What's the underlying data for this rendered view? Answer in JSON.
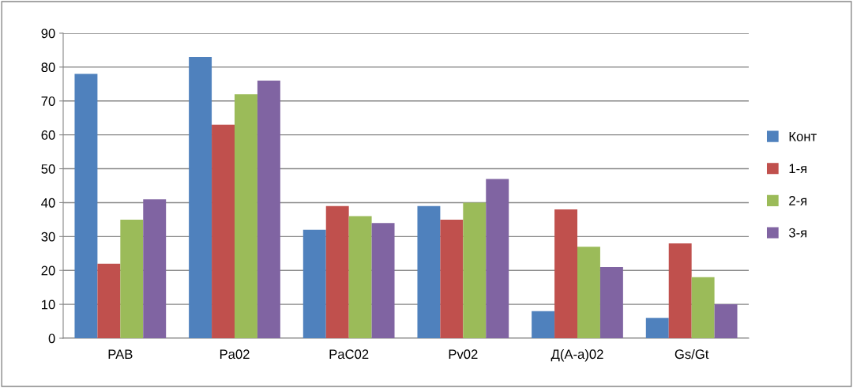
{
  "chart_data": {
    "type": "bar",
    "categories": [
      "PAB",
      "Pa02",
      "PaC02",
      "Pv02",
      "Д(A-a)02",
      "Gs/Gt"
    ],
    "series": [
      {
        "name": "Конт",
        "color": "#4f81bd",
        "values": [
          78,
          83,
          32,
          39,
          8,
          6
        ]
      },
      {
        "name": "1-я",
        "color": "#c0504d",
        "values": [
          22,
          63,
          39,
          35,
          38,
          28
        ]
      },
      {
        "name": "2-я",
        "color": "#9bbb59",
        "values": [
          35,
          72,
          36,
          40,
          27,
          18
        ]
      },
      {
        "name": "3-я",
        "color": "#8064a2",
        "values": [
          41,
          76,
          34,
          47,
          21,
          10
        ]
      }
    ],
    "ylim": [
      0,
      90
    ],
    "yticks": [
      0,
      10,
      20,
      30,
      40,
      50,
      60,
      70,
      80,
      90
    ],
    "grid": "y",
    "legend": "right"
  }
}
